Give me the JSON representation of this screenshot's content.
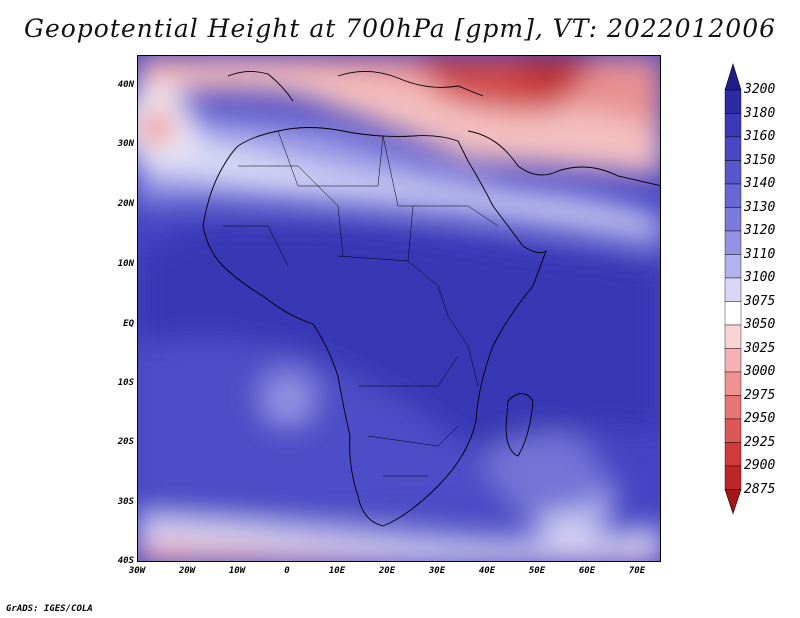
{
  "title": "Geopotential Height at 700hPa [gpm], VT: 2022012006",
  "footer": "GrADS: IGES/COLA",
  "map": {
    "region": "Africa",
    "lat_labels": [
      "40N",
      "30N",
      "20N",
      "10N",
      "EQ",
      "10S",
      "20S",
      "30S",
      "40S"
    ],
    "lon_labels": [
      "30W",
      "20W",
      "10W",
      "0",
      "10E",
      "20E",
      "30E",
      "40E",
      "50E",
      "60E",
      "70E"
    ]
  },
  "colorbar": {
    "levels": [
      "3200",
      "3180",
      "3160",
      "3150",
      "3140",
      "3130",
      "3120",
      "3110",
      "3100",
      "3075",
      "3050",
      "3025",
      "3000",
      "2975",
      "2950",
      "2925",
      "2900",
      "2875"
    ],
    "colors": [
      "#1f1f8c",
      "#2b2ba5",
      "#3a3ab8",
      "#4848c4",
      "#5757cc",
      "#6868d4",
      "#7b7bdc",
      "#9393e4",
      "#b2b2ee",
      "#d8d8f6",
      "#ffffff",
      "#fbd3d3",
      "#f6b2b2",
      "#f09292",
      "#e87474",
      "#dd5757",
      "#d03a3a",
      "#be2525",
      "#a61616"
    ]
  }
}
